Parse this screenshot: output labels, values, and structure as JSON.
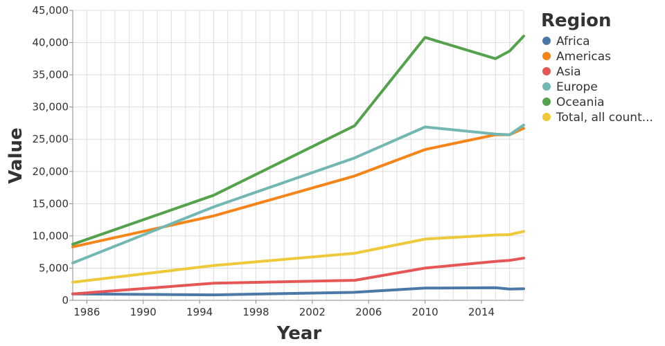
{
  "chart_data": {
    "type": "line",
    "xlabel": "Year",
    "ylabel": "Value",
    "xlim": [
      1985,
      2017
    ],
    "ylim": [
      0,
      45000
    ],
    "x_ticks": [
      1986,
      1990,
      1994,
      1998,
      2002,
      2006,
      2010,
      2014
    ],
    "y_ticks": [
      0,
      5000,
      10000,
      15000,
      20000,
      25000,
      30000,
      35000,
      40000,
      45000
    ],
    "y_tick_labels": [
      "0",
      "5,000",
      "10,000",
      "15,000",
      "20,000",
      "25,000",
      "30,000",
      "35,000",
      "40,000",
      "45,000"
    ],
    "grid": true,
    "legend": {
      "title": "Region",
      "placement": "right"
    },
    "series": [
      {
        "name": "Africa",
        "color": "#4c78a8",
        "points": [
          [
            1985,
            1000
          ],
          [
            1995,
            850
          ],
          [
            2005,
            1250
          ],
          [
            2010,
            1900
          ],
          [
            2015,
            1950
          ],
          [
            2016,
            1750
          ],
          [
            2017,
            1800
          ]
        ]
      },
      {
        "name": "Americas",
        "color": "#f58518",
        "points": [
          [
            1985,
            8300
          ],
          [
            1995,
            13100
          ],
          [
            2005,
            19300
          ],
          [
            2010,
            23400
          ],
          [
            2015,
            25700
          ],
          [
            2016,
            25700
          ],
          [
            2017,
            26700
          ]
        ]
      },
      {
        "name": "Asia",
        "color": "#e45756",
        "points": [
          [
            1985,
            1000
          ],
          [
            1995,
            2650
          ],
          [
            2005,
            3100
          ],
          [
            2010,
            5000
          ],
          [
            2015,
            6050
          ],
          [
            2016,
            6200
          ],
          [
            2017,
            6550
          ]
        ]
      },
      {
        "name": "Europe",
        "color": "#72b7b2",
        "points": [
          [
            1985,
            5800
          ],
          [
            1995,
            14500
          ],
          [
            2005,
            22100
          ],
          [
            2010,
            26900
          ],
          [
            2015,
            25800
          ],
          [
            2016,
            25700
          ],
          [
            2017,
            27200
          ]
        ]
      },
      {
        "name": "Oceania",
        "color": "#54a24b",
        "points": [
          [
            1985,
            8700
          ],
          [
            1995,
            16300
          ],
          [
            2005,
            27100
          ],
          [
            2010,
            40800
          ],
          [
            2015,
            37500
          ],
          [
            2016,
            38700
          ],
          [
            2017,
            41000
          ]
        ]
      },
      {
        "name": "Total, all count...",
        "color": "#eeca3b",
        "points": [
          [
            1985,
            2800
          ],
          [
            1995,
            5400
          ],
          [
            2005,
            7300
          ],
          [
            2010,
            9500
          ],
          [
            2015,
            10150
          ],
          [
            2016,
            10200
          ],
          [
            2017,
            10700
          ]
        ]
      }
    ]
  }
}
